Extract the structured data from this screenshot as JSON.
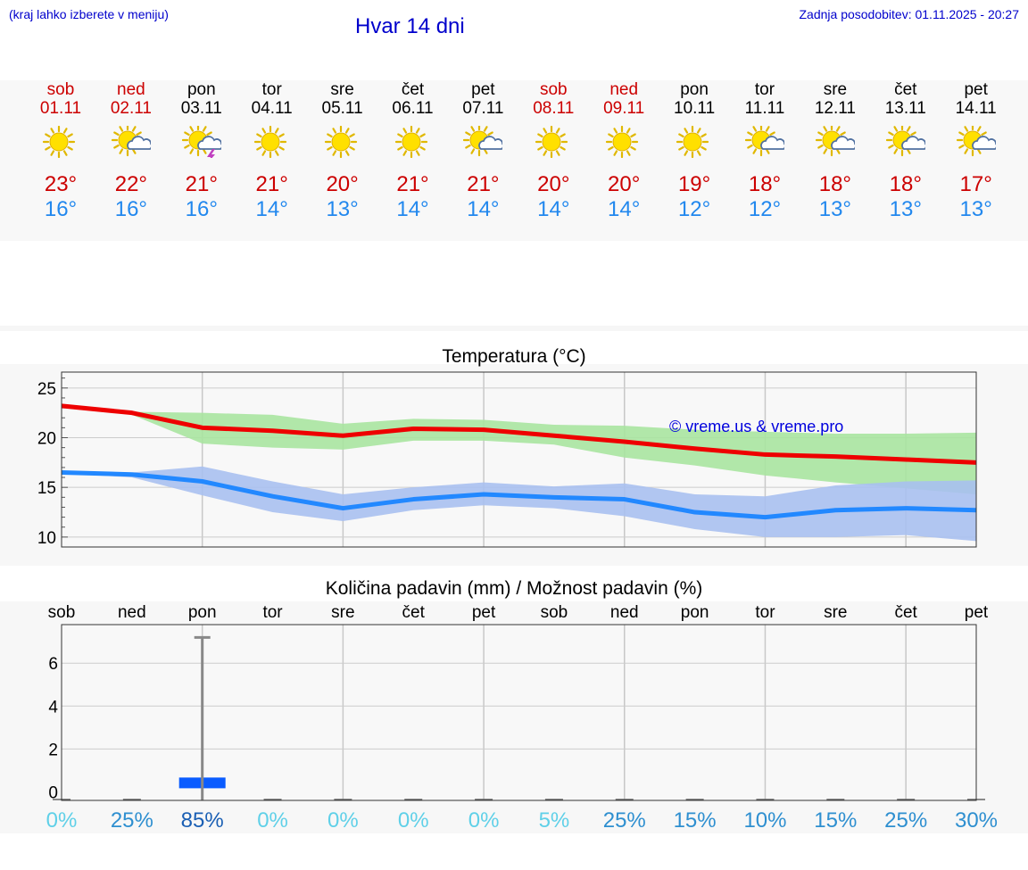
{
  "header": {
    "hint": "(kraj lahko izberete v meniju)",
    "title": "Hvar 14 dni",
    "updated_label": "Zadnja posodobitev:",
    "updated_value": "01.11.2025 - 20:27"
  },
  "days": [
    {
      "name": "sob",
      "date": "01.11",
      "weekend": true,
      "icon": "sun-icon",
      "max": "23°",
      "min": "16°"
    },
    {
      "name": "ned",
      "date": "02.11",
      "weekend": true,
      "icon": "sun-cloud-icon",
      "max": "22°",
      "min": "16°"
    },
    {
      "name": "pon",
      "date": "03.11",
      "weekend": false,
      "icon": "sun-storm-icon",
      "max": "21°",
      "min": "16°"
    },
    {
      "name": "tor",
      "date": "04.11",
      "weekend": false,
      "icon": "sun-icon",
      "max": "21°",
      "min": "14°"
    },
    {
      "name": "sre",
      "date": "05.11",
      "weekend": false,
      "icon": "sun-icon",
      "max": "20°",
      "min": "13°"
    },
    {
      "name": "čet",
      "date": "06.11",
      "weekend": false,
      "icon": "sun-icon",
      "max": "21°",
      "min": "14°"
    },
    {
      "name": "pet",
      "date": "07.11",
      "weekend": false,
      "icon": "sun-cloud-icon",
      "max": "21°",
      "min": "14°"
    },
    {
      "name": "sob",
      "date": "08.11",
      "weekend": true,
      "icon": "sun-icon",
      "max": "20°",
      "min": "14°"
    },
    {
      "name": "ned",
      "date": "09.11",
      "weekend": true,
      "icon": "sun-icon",
      "max": "20°",
      "min": "14°"
    },
    {
      "name": "pon",
      "date": "10.11",
      "weekend": false,
      "icon": "sun-icon",
      "max": "19°",
      "min": "12°"
    },
    {
      "name": "tor",
      "date": "11.11",
      "weekend": false,
      "icon": "sun-cloud-icon",
      "max": "18°",
      "min": "12°"
    },
    {
      "name": "sre",
      "date": "12.11",
      "weekend": false,
      "icon": "sun-cloud-icon",
      "max": "18°",
      "min": "13°"
    },
    {
      "name": "čet",
      "date": "13.11",
      "weekend": false,
      "icon": "sun-cloud-icon",
      "max": "18°",
      "min": "13°"
    },
    {
      "name": "pet",
      "date": "14.11",
      "weekend": false,
      "icon": "sun-cloud-icon",
      "max": "17°",
      "min": "13°"
    }
  ],
  "chart_data": [
    {
      "type": "line",
      "title": "Temperatura (°C)",
      "watermark": "© vreme.us & vreme.pro",
      "ylim": [
        9,
        26.6
      ],
      "yticks": [
        10,
        15,
        20,
        25
      ],
      "x": [
        0,
        1,
        2,
        3,
        4,
        5,
        6,
        7,
        8,
        9,
        10,
        11,
        12,
        13
      ],
      "series": [
        {
          "name": "max",
          "color": "#ee0000",
          "values": [
            23.2,
            22.5,
            21.0,
            20.7,
            20.2,
            20.9,
            20.8,
            20.2,
            19.6,
            18.9,
            18.3,
            18.1,
            17.8,
            17.5
          ]
        },
        {
          "name": "min",
          "color": "#2288ff",
          "values": [
            16.5,
            16.3,
            15.6,
            14.1,
            12.9,
            13.8,
            14.3,
            14.0,
            13.8,
            12.5,
            12.0,
            12.7,
            12.9,
            12.7
          ]
        }
      ],
      "bands": [
        {
          "name": "max-range",
          "color": "#a8e4a0",
          "upper": [
            23.0,
            22.6,
            22.5,
            22.3,
            21.4,
            21.9,
            21.8,
            21.3,
            21.2,
            20.8,
            20.6,
            20.4,
            20.4,
            20.5
          ],
          "lower": [
            23.0,
            22.3,
            19.4,
            19.0,
            18.8,
            19.7,
            19.7,
            19.3,
            18.0,
            17.2,
            16.2,
            15.5,
            14.9,
            14.3
          ]
        },
        {
          "name": "min-range",
          "color": "#a8c0f0",
          "upper": [
            16.6,
            16.5,
            17.1,
            15.6,
            14.3,
            15.0,
            15.5,
            15.1,
            15.4,
            14.3,
            14.1,
            15.2,
            15.6,
            15.7
          ],
          "lower": [
            16.4,
            16.0,
            14.2,
            12.5,
            11.6,
            12.7,
            13.2,
            12.9,
            12.1,
            10.8,
            10.0,
            10.0,
            10.2,
            9.6
          ]
        }
      ]
    },
    {
      "type": "bar",
      "title": "Količina padavin (mm) / Možnost padavin (%)",
      "ylim": [
        -0.4,
        7.8
      ],
      "yticks": [
        0,
        2,
        4,
        6
      ],
      "categories": [
        "sob",
        "ned",
        "pon",
        "tor",
        "sre",
        "čet",
        "pet",
        "sob",
        "ned",
        "pon",
        "tor",
        "sre",
        "čet",
        "pet"
      ],
      "values": [
        0,
        0,
        0.5,
        0,
        0,
        0,
        0,
        0,
        0,
        0,
        0,
        0,
        0,
        0
      ],
      "error_max": [
        0,
        0,
        7.2,
        0,
        0,
        0,
        0,
        0,
        0,
        0,
        0,
        0,
        0,
        0
      ],
      "probability": [
        "0%",
        "25%",
        "85%",
        "0%",
        "0%",
        "0%",
        "0%",
        "5%",
        "25%",
        "15%",
        "10%",
        "15%",
        "25%",
        "30%"
      ],
      "probability_values": [
        0,
        25,
        85,
        0,
        0,
        0,
        0,
        5,
        25,
        15,
        10,
        15,
        25,
        30
      ]
    }
  ],
  "colors": {
    "weekend": "#cc0000",
    "weekday": "#000000",
    "max": "#cc0000",
    "min": "#2288ee",
    "link": "#0000cc"
  }
}
